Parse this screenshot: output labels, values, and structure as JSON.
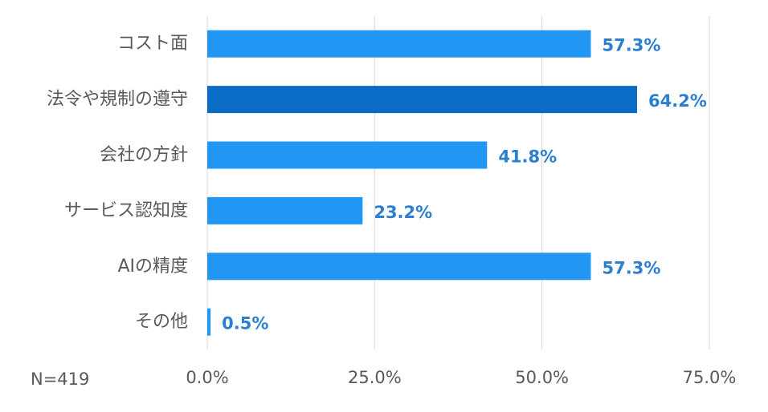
{
  "chart_data": {
    "type": "bar",
    "orientation": "horizontal",
    "categories": [
      "コスト面",
      "法令や規制の遵守",
      "会社の方針",
      "サービス認知度",
      "AIの精度",
      "その他"
    ],
    "values": [
      57.3,
      64.2,
      41.8,
      23.2,
      57.3,
      0.5
    ],
    "data_labels": [
      "57.3%",
      "64.2%",
      "41.8%",
      "23.2%",
      "57.3%",
      "0.5%"
    ],
    "x_ticks": [
      0,
      25,
      50,
      75
    ],
    "x_tick_labels": [
      "0.0%",
      "25.0%",
      "50.0%",
      "75.0%"
    ],
    "xlim": [
      0,
      75
    ],
    "grid": "vertical",
    "note": "N=419",
    "colors": {
      "bar": "#2196f3",
      "highlight_bar": "#0a6cc4",
      "data_label": "#2a7fd1",
      "grid": "#d9d9d9",
      "text": "#595959"
    },
    "highlight_index": 1
  }
}
